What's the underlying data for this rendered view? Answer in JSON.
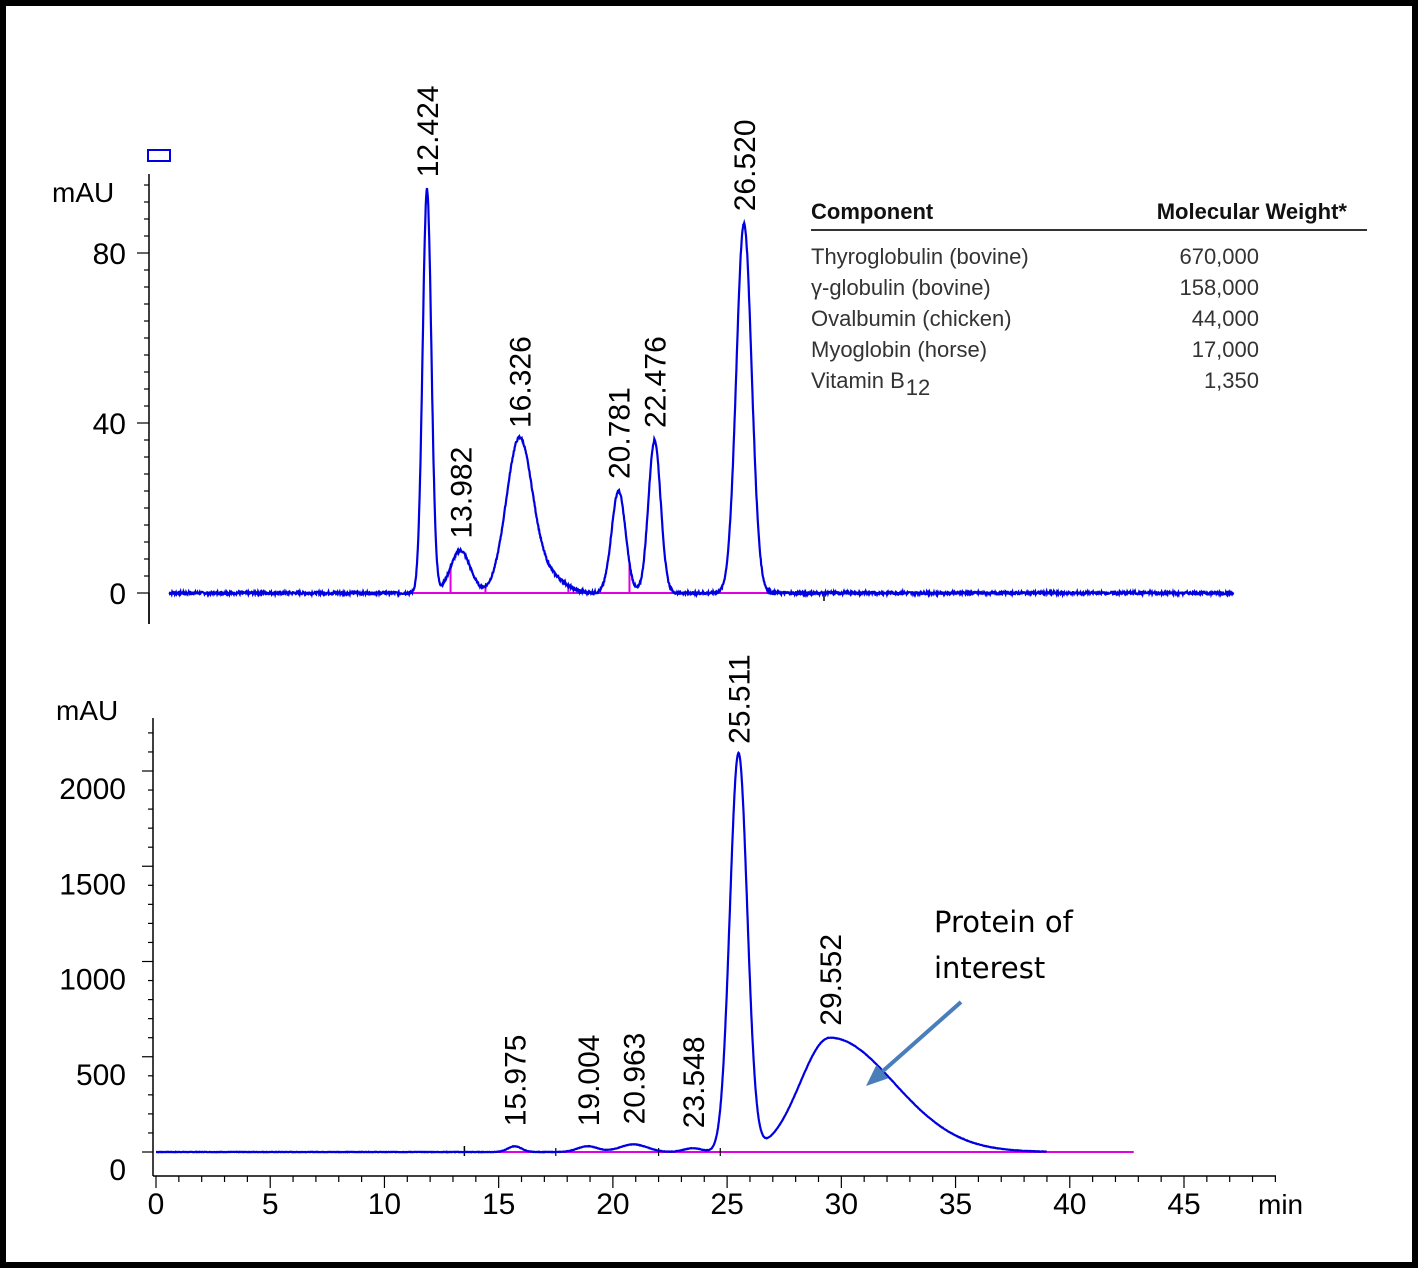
{
  "chart_data": [
    {
      "type": "line",
      "panel": "top",
      "ylabel": "mAU",
      "xlabel": "",
      "xlim": [
        0,
        50
      ],
      "ylim": [
        0,
        98
      ],
      "yticks": [
        "0",
        "40",
        "80"
      ],
      "series": [
        {
          "color": "#0000e0",
          "peaks": [
            {
              "label": "12.424",
              "x": 12.02,
              "y": 95,
              "w": 0.2
            },
            {
              "label": "13.982",
              "x": 13.55,
              "y": 10,
              "w": 0.45
            },
            {
              "label": "16.326",
              "x": 16.25,
              "y": 36,
              "w": 0.6
            },
            {
              "label": "20.781",
              "x": 20.8,
              "y": 24,
              "w": 0.32
            },
            {
              "label": "22.476",
              "x": 22.45,
              "y": 36,
              "w": 0.28
            },
            {
              "label": "26.520",
              "x": 26.55,
              "y": 87,
              "w": 0.35
            }
          ]
        }
      ],
      "baseline_color": "#e000e0",
      "baseline_range": [
        11.0,
        30.0
      ],
      "integration_marks": [
        13.1,
        14.7,
        18.5,
        21.3
      ],
      "table": {
        "headers": [
          "Component",
          "Molecular Weight*"
        ],
        "rows": [
          {
            "name": "Thyroglobulin (bovine)",
            "sub": "",
            "mw": "670,000"
          },
          {
            "name": "γ-globulin (bovine)",
            "sub": "",
            "mw": "158,000"
          },
          {
            "name": "Ovalbumin (chicken)",
            "sub": "",
            "mw": "44,000"
          },
          {
            "name": "Myoglobin (horse)",
            "sub": "",
            "mw": "17,000"
          },
          {
            "name": "Vitamin B",
            "sub": "12",
            "mw": "1,350"
          }
        ]
      }
    },
    {
      "type": "line",
      "panel": "bottom",
      "ylabel": "mAU",
      "xlabel": "min",
      "xlim": [
        0,
        49
      ],
      "xticks": [
        "0",
        "5",
        "10",
        "15",
        "20",
        "25",
        "30",
        "35",
        "40",
        "45"
      ],
      "ylim": [
        0,
        2200
      ],
      "yticks": [
        "0",
        "500",
        "1000",
        "1500",
        "2000"
      ],
      "series": [
        {
          "color": "#0000e0",
          "peaks": [
            {
              "label": "15.975",
              "x": 15.7,
              "y": 30,
              "w": 0.3
            },
            {
              "label": "19.004",
              "x": 18.9,
              "y": 30,
              "w": 0.45
            },
            {
              "label": "20.963",
              "x": 20.9,
              "y": 40,
              "w": 0.6
            },
            {
              "label": "23.548",
              "x": 23.5,
              "y": 20,
              "w": 0.4
            },
            {
              "label": "25.511",
              "x": 25.5,
              "y": 2090,
              "w": 0.38
            },
            {
              "label": "29.552",
              "x": 29.5,
              "y": 600,
              "w": 1.3,
              "tail": 2.8
            }
          ]
        }
      ],
      "baseline_color": "#e000e0",
      "baseline_range": [
        13.5,
        42.8
      ],
      "integration_marks": [
        17.5,
        22.0,
        24.7
      ],
      "annotation": {
        "lines": [
          "Protein of",
          "interest"
        ],
        "arrow_color": "#4a7ebb"
      }
    }
  ]
}
